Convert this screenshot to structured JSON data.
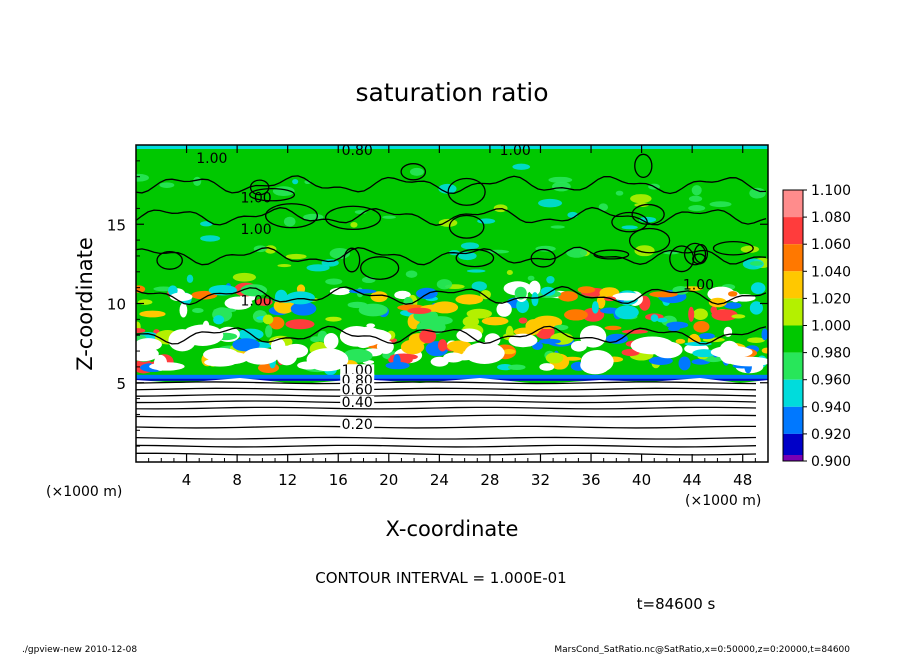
{
  "chart_data": {
    "type": "heatmap",
    "title": "saturation ratio",
    "xlabel": "X-coordinate",
    "ylabel": "Z-coordinate",
    "x_unit": "(×1000 m)",
    "x_unit_right": "(×1000 m)",
    "xlim": [
      0,
      50
    ],
    "ylim": [
      0,
      20
    ],
    "x_ticks": [
      {
        "value": 4,
        "label": "4"
      },
      {
        "value": 8,
        "label": "8"
      },
      {
        "value": 12,
        "label": "12"
      },
      {
        "value": 16,
        "label": "16"
      },
      {
        "value": 20,
        "label": "20"
      },
      {
        "value": 24,
        "label": "24"
      },
      {
        "value": 28,
        "label": "28"
      },
      {
        "value": 32,
        "label": "32"
      },
      {
        "value": 36,
        "label": "36"
      },
      {
        "value": 40,
        "label": "40"
      },
      {
        "value": 44,
        "label": "44"
      },
      {
        "value": 48,
        "label": "48"
      }
    ],
    "y_ticks": [
      {
        "value": 5,
        "label": "5"
      },
      {
        "value": 10,
        "label": "10"
      },
      {
        "value": 15,
        "label": "15"
      }
    ],
    "colorbar": [
      {
        "label": "1.100",
        "color": "#ff8c8c"
      },
      {
        "label": "1.080",
        "color": "#ff3c3c"
      },
      {
        "label": "1.060",
        "color": "#ff7800"
      },
      {
        "label": "1.040",
        "color": "#ffc800"
      },
      {
        "label": "1.020",
        "color": "#b4f000"
      },
      {
        "label": "1.000",
        "color": "#00c800"
      },
      {
        "label": "0.980",
        "color": "#28e65a"
      },
      {
        "label": "0.960",
        "color": "#00dcdc"
      },
      {
        "label": "0.940",
        "color": "#0078ff"
      },
      {
        "label": "0.920",
        "color": "#0000c8"
      },
      {
        "label": "0.900",
        "color": "#7800b4"
      }
    ],
    "contour_labels": [
      {
        "text": "1.00",
        "x": 6,
        "z": 19.0
      },
      {
        "text": "1.00",
        "x": 9.5,
        "z": 16.5
      },
      {
        "text": "1.00",
        "x": 9.5,
        "z": 14.5
      },
      {
        "text": "1.00",
        "x": 30,
        "z": 19.5
      },
      {
        "text": "1.00",
        "x": 9.5,
        "z": 10.0
      },
      {
        "text": "1.00",
        "x": 44.5,
        "z": 11.0
      },
      {
        "text": "0.80",
        "x": 17.5,
        "z": 19.5
      },
      {
        "text": "1.00",
        "x": 17.5,
        "z": 5.6
      },
      {
        "text": "0.80",
        "x": 17.5,
        "z": 5.0
      },
      {
        "text": "0.60",
        "x": 17.5,
        "z": 4.4
      },
      {
        "text": "0.40",
        "x": 17.5,
        "z": 3.6
      },
      {
        "text": "0.20",
        "x": 17.5,
        "z": 2.2
      }
    ],
    "annotation": "CONTOUR INTERVAL = 1.000E-01",
    "time_label": "t=84600 s"
  },
  "footer": {
    "left": "./gpview-new  2010-12-08",
    "right": "MarsCond_SatRatio.nc@SatRatio,x=0:50000,z=0:20000,t=84600"
  },
  "colors": {
    "background": "#ffffff",
    "green": "#00c800",
    "axis": "#000000"
  }
}
